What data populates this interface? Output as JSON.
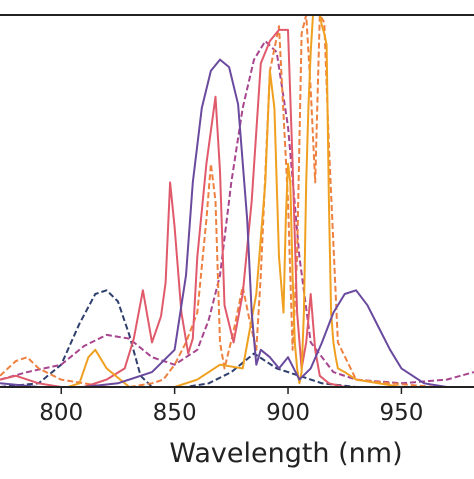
{
  "chart_data": {
    "type": "line",
    "title": "",
    "xlabel": "Wavelength (nm)",
    "ylabel": "",
    "xlim": [
      773,
      982
    ],
    "ylim": [
      0,
      1.0
    ],
    "xticks": [
      800,
      850,
      900,
      950
    ],
    "grid": false,
    "legend": "none",
    "series": [
      {
        "color": "#2e3f6e",
        "dash": true,
        "x": [
          773,
          790,
          800,
          808,
          815,
          820,
          825,
          830,
          835,
          840,
          845,
          855,
          865,
          875,
          885,
          895,
          905,
          915,
          930,
          950,
          982
        ],
        "y": [
          0.0,
          0.01,
          0.06,
          0.17,
          0.25,
          0.26,
          0.23,
          0.14,
          0.03,
          0.0,
          0.0,
          0.0,
          0.01,
          0.04,
          0.09,
          0.05,
          0.03,
          0.01,
          0.0,
          0.0,
          0.0
        ]
      },
      {
        "color": "#a8458f",
        "dash": true,
        "x": [
          773,
          785,
          800,
          810,
          820,
          830,
          840,
          850,
          860,
          865,
          870,
          875,
          880,
          885,
          890,
          895,
          900,
          905,
          910,
          920,
          930,
          950,
          970,
          982
        ],
        "y": [
          0.02,
          0.04,
          0.06,
          0.11,
          0.14,
          0.13,
          0.08,
          0.06,
          0.1,
          0.18,
          0.3,
          0.55,
          0.75,
          0.88,
          0.93,
          0.9,
          0.7,
          0.35,
          0.12,
          0.04,
          0.02,
          0.01,
          0.02,
          0.04
        ]
      },
      {
        "color": "#ee8040",
        "dash": true,
        "x": [
          773,
          780,
          785,
          790,
          800,
          810,
          820,
          830,
          840,
          845,
          850,
          855,
          860,
          864,
          866,
          868,
          870,
          872,
          876,
          880,
          883,
          886,
          888,
          892,
          896,
          900,
          902,
          904,
          906,
          908,
          910,
          912,
          914,
          916,
          918,
          922,
          930,
          945,
          965,
          982
        ],
        "y": [
          0.03,
          0.07,
          0.08,
          0.05,
          0.02,
          0.01,
          0.0,
          0.0,
          0.01,
          0.02,
          0.06,
          0.12,
          0.2,
          0.45,
          0.6,
          0.5,
          0.12,
          0.05,
          0.15,
          0.27,
          0.18,
          0.1,
          0.3,
          0.85,
          0.97,
          0.5,
          0.1,
          0.35,
          0.95,
          1.0,
          0.8,
          0.55,
          1.0,
          0.98,
          0.65,
          0.12,
          0.02,
          0.01,
          0.0,
          0.0
        ]
      },
      {
        "color": "#e05a6c",
        "dash": false,
        "x": [
          773,
          780,
          790,
          800,
          810,
          820,
          828,
          832,
          836,
          840,
          844,
          846,
          848,
          850,
          853,
          856,
          858,
          860,
          864,
          868,
          870,
          872,
          876,
          880,
          884,
          888,
          892,
          896,
          900,
          902,
          904,
          906,
          908,
          910,
          912,
          914,
          918,
          925,
          940,
          960,
          982
        ],
        "y": [
          0.02,
          0.03,
          0.01,
          0.0,
          0.0,
          0.02,
          0.05,
          0.13,
          0.26,
          0.12,
          0.19,
          0.28,
          0.55,
          0.43,
          0.2,
          0.09,
          0.13,
          0.35,
          0.6,
          0.78,
          0.58,
          0.22,
          0.12,
          0.25,
          0.5,
          0.87,
          0.93,
          0.96,
          0.96,
          0.6,
          0.2,
          0.05,
          0.12,
          0.25,
          0.1,
          0.03,
          0.01,
          0.0,
          0.0,
          0.0,
          0.0
        ]
      },
      {
        "color": "#f0a020",
        "dash": false,
        "x": [
          773,
          785,
          795,
          803,
          808,
          812,
          815,
          820,
          830,
          840,
          850,
          860,
          870,
          880,
          886,
          890,
          892,
          894,
          896,
          898,
          899,
          900,
          901,
          902,
          903,
          904,
          905,
          906,
          907,
          908,
          909,
          910,
          911,
          912,
          913,
          914,
          915,
          916,
          917,
          918,
          919,
          920,
          921,
          922,
          925,
          930,
          950,
          982
        ],
        "y": [
          0.0,
          0.0,
          0.0,
          0.0,
          0.01,
          0.08,
          0.1,
          0.05,
          0.0,
          0.0,
          0.0,
          0.02,
          0.06,
          0.05,
          0.25,
          0.55,
          0.85,
          0.75,
          0.35,
          0.2,
          0.45,
          0.6,
          0.55,
          0.3,
          0.12,
          0.05,
          0.01,
          0.04,
          0.2,
          0.55,
          0.75,
          0.9,
          1.0,
          1.0,
          1.0,
          1.0,
          0.97,
          0.95,
          0.92,
          0.5,
          0.2,
          0.12,
          0.08,
          0.05,
          0.04,
          0.02,
          0.0,
          0.0
        ]
      },
      {
        "color": "#6a4a9e",
        "dash": false,
        "x": [
          773,
          790,
          810,
          825,
          840,
          850,
          855,
          858,
          862,
          866,
          870,
          874,
          878,
          882,
          884,
          886,
          888,
          892,
          896,
          900,
          905,
          910,
          915,
          920,
          925,
          930,
          935,
          940,
          945,
          950,
          960,
          970,
          982
        ],
        "y": [
          0.01,
          0.0,
          0.0,
          0.01,
          0.04,
          0.1,
          0.3,
          0.55,
          0.75,
          0.85,
          0.88,
          0.86,
          0.76,
          0.45,
          0.2,
          0.06,
          0.1,
          0.08,
          0.05,
          0.08,
          0.02,
          0.05,
          0.12,
          0.2,
          0.25,
          0.26,
          0.22,
          0.16,
          0.1,
          0.05,
          0.01,
          0.0,
          0.0
        ]
      }
    ]
  }
}
